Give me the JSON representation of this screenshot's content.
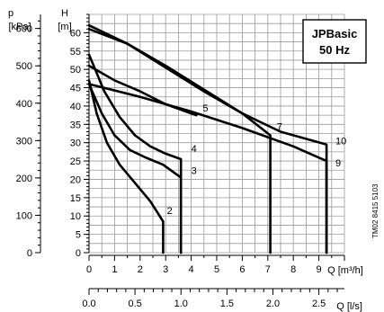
{
  "chart_data": {
    "type": "line",
    "title": "JPBasic",
    "subtitle": "50 Hz",
    "side_note": "TM02 8415 5103",
    "x_axis": {
      "label": "Q [m³/h]",
      "range": [
        0,
        10
      ],
      "ticks": [
        0,
        1,
        2,
        3,
        4,
        5,
        6,
        7,
        8,
        9
      ],
      "tick_labels": [
        "0",
        "1",
        "2",
        "3",
        "4",
        "5",
        "6",
        "7",
        "8",
        "9"
      ]
    },
    "x2_axis": {
      "label": "Q [l/s]",
      "range": [
        0,
        2.78
      ],
      "ticks": [
        0,
        0.5,
        1.0,
        1.5,
        2.0,
        2.5
      ],
      "tick_labels": [
        "0.0",
        "0.5",
        "1.0",
        "1.5",
        "2.0",
        "2.5"
      ]
    },
    "y_axis": {
      "label_top": "H",
      "label_unit": "[m]",
      "range": [
        0,
        65
      ],
      "ticks": [
        0,
        5,
        10,
        15,
        20,
        25,
        30,
        35,
        40,
        45,
        50,
        55,
        60
      ],
      "tick_labels": [
        "0",
        "5",
        "10",
        "15",
        "20",
        "25",
        "30",
        "35",
        "40",
        "45",
        "50",
        "55",
        "60"
      ]
    },
    "y2_axis": {
      "label_top": "p",
      "label_unit": "[kPa]",
      "ticks": [
        0,
        100,
        200,
        300,
        400,
        500,
        600
      ],
      "tick_labels": [
        "0",
        "100",
        "200",
        "300",
        "400",
        "500",
        "600"
      ]
    },
    "grid": true,
    "legend": "top-right",
    "series": [
      {
        "name": "2",
        "x": [
          0,
          0.3,
          0.7,
          1.2,
          1.8,
          2.4,
          2.9,
          2.9
        ],
        "y": [
          47,
          38,
          30,
          24,
          19,
          14,
          8.5,
          0
        ]
      },
      {
        "name": "3",
        "x": [
          0,
          0.5,
          1.0,
          1.6,
          2.2,
          2.9,
          3.6,
          3.6
        ],
        "y": [
          46,
          38,
          32,
          28,
          26,
          24,
          20.5,
          0
        ]
      },
      {
        "name": "4",
        "x": [
          0,
          0.6,
          1.2,
          1.8,
          2.4,
          3.0,
          3.6,
          3.6
        ],
        "y": [
          54,
          44,
          37,
          32,
          29,
          27,
          25.5,
          0
        ]
      },
      {
        "name": "5",
        "x": [
          0,
          1.0,
          2.0,
          3.0,
          4.0,
          4.2
        ],
        "y": [
          51,
          47,
          44,
          40.5,
          38,
          37.5
        ]
      },
      {
        "name": "7",
        "x": [
          0,
          1.5,
          3.0,
          4.5,
          6.0,
          7.1,
          7.1
        ],
        "y": [
          61,
          57,
          51,
          44.5,
          38,
          32,
          0
        ]
      },
      {
        "name": "9",
        "x": [
          0,
          2.0,
          4.0,
          6.0,
          8.0,
          9.3,
          9.3
        ],
        "y": [
          46,
          42.5,
          38.5,
          34,
          29,
          25,
          0
        ]
      },
      {
        "name": "10",
        "x": [
          0,
          1.5,
          3.0,
          4.5,
          6.0,
          7.5,
          9.3,
          9.3
        ],
        "y": [
          62,
          57,
          50.5,
          44,
          38,
          33,
          29.5,
          0
        ]
      }
    ]
  }
}
